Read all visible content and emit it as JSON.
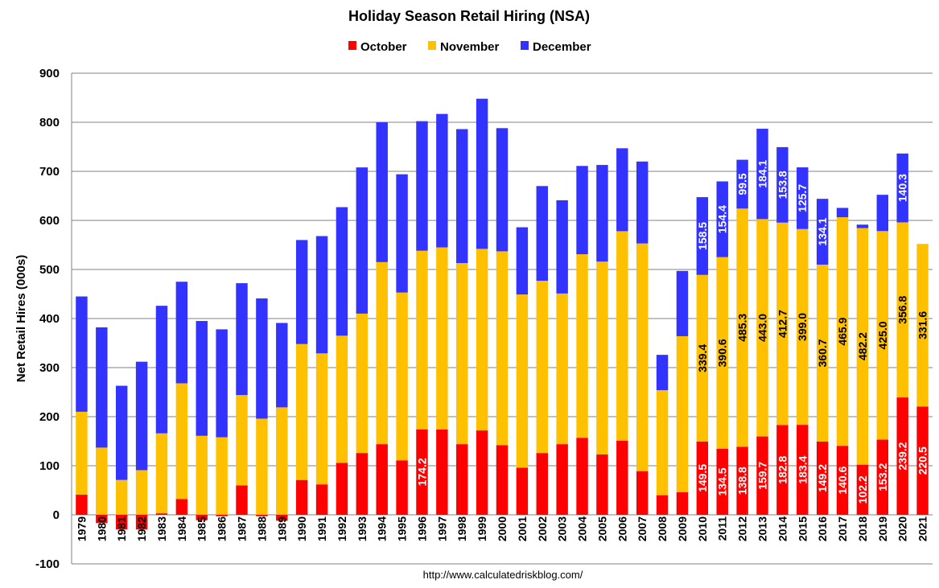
{
  "chart_data": {
    "type": "bar",
    "stacked": true,
    "title": "Holiday Season Retail Hiring (NSA)",
    "ylabel": "Net Retail Hires (000s)",
    "xlabel": "",
    "ylim": [
      -100,
      900
    ],
    "yticks": [
      -100,
      0,
      100,
      200,
      300,
      400,
      500,
      600,
      700,
      800,
      900
    ],
    "grid": true,
    "legend_position": "top-center",
    "source": "http://www.calculatedriskblog.com/",
    "categories": [
      "1979",
      "1980",
      "1981",
      "1982",
      "1983",
      "1984",
      "1985",
      "1986",
      "1987",
      "1988",
      "1989",
      "1990",
      "1991",
      "1992",
      "1993",
      "1994",
      "1995",
      "1996",
      "1997",
      "1998",
      "1999",
      "2000",
      "2001",
      "2002",
      "2003",
      "2004",
      "2005",
      "2006",
      "2007",
      "2008",
      "2009",
      "2010",
      "2011",
      "2012",
      "2013",
      "2014",
      "2015",
      "2016",
      "2017",
      "2018",
      "2019",
      "2020",
      "2021"
    ],
    "series": [
      {
        "name": "October",
        "color": "#ff0000",
        "values": [
          41,
          -17,
          -30,
          -30,
          3,
          32,
          -11,
          -3,
          60,
          -3,
          -12,
          71,
          62,
          106,
          126,
          144,
          111,
          174.2,
          174,
          144,
          172,
          142,
          96,
          126,
          144,
          157,
          123,
          151,
          89,
          40,
          46,
          149.5,
          134.5,
          138.8,
          159.7,
          182.8,
          183.4,
          149.2,
          140.6,
          102.2,
          153.2,
          239.2,
          220.5
        ]
      },
      {
        "name": "November",
        "color": "#ffc000",
        "values": [
          169,
          137,
          71,
          91,
          163,
          236,
          161,
          158,
          184,
          196,
          219,
          277,
          267,
          259,
          284,
          371,
          342,
          364,
          371,
          369,
          370,
          395,
          353,
          351,
          307,
          374,
          393,
          427,
          464,
          214,
          318,
          339.4,
          390.6,
          485.3,
          443.0,
          412.7,
          399.0,
          360.7,
          465.9,
          482.2,
          425.0,
          356.8,
          331.6
        ]
      },
      {
        "name": "December",
        "color": "#3333ff",
        "values": [
          235,
          245,
          192,
          221,
          260,
          207,
          234,
          220,
          228,
          245,
          172,
          212,
          239,
          262,
          298,
          285,
          241,
          264,
          272,
          273,
          306,
          251,
          137,
          193,
          190,
          180,
          197,
          169,
          167,
          72,
          133,
          158.5,
          154.4,
          99.5,
          184.1,
          153.8,
          125.7,
          134.1,
          19,
          7,
          74,
          140.3,
          0
        ]
      }
    ],
    "data_labels": {
      "December": {
        "2010": "158.5",
        "2011": "154.4",
        "2012": "99.5",
        "2013": "184.1",
        "2014": "153.8",
        "2015": "125.7",
        "2016": "134.1",
        "2020": "140.3"
      },
      "November": {
        "2010": "339.4",
        "2011": "390.6",
        "2012": "485.3",
        "2013": "443.0",
        "2014": "412.7",
        "2015": "399.0",
        "2016": "360.7",
        "2017": "465.9",
        "2018": "482.2",
        "2019": "425.0",
        "2020": "356.8",
        "2021": "331.6"
      },
      "October": {
        "1996": "174.2",
        "2010": "149.5",
        "2011": "134.5",
        "2012": "138.8",
        "2013": "159.7",
        "2014": "182.8",
        "2015": "183.4",
        "2016": "149.2",
        "2017": "140.6",
        "2018": "102.2",
        "2019": "153.2",
        "2020": "239.2",
        "2021": "220.5"
      }
    }
  }
}
